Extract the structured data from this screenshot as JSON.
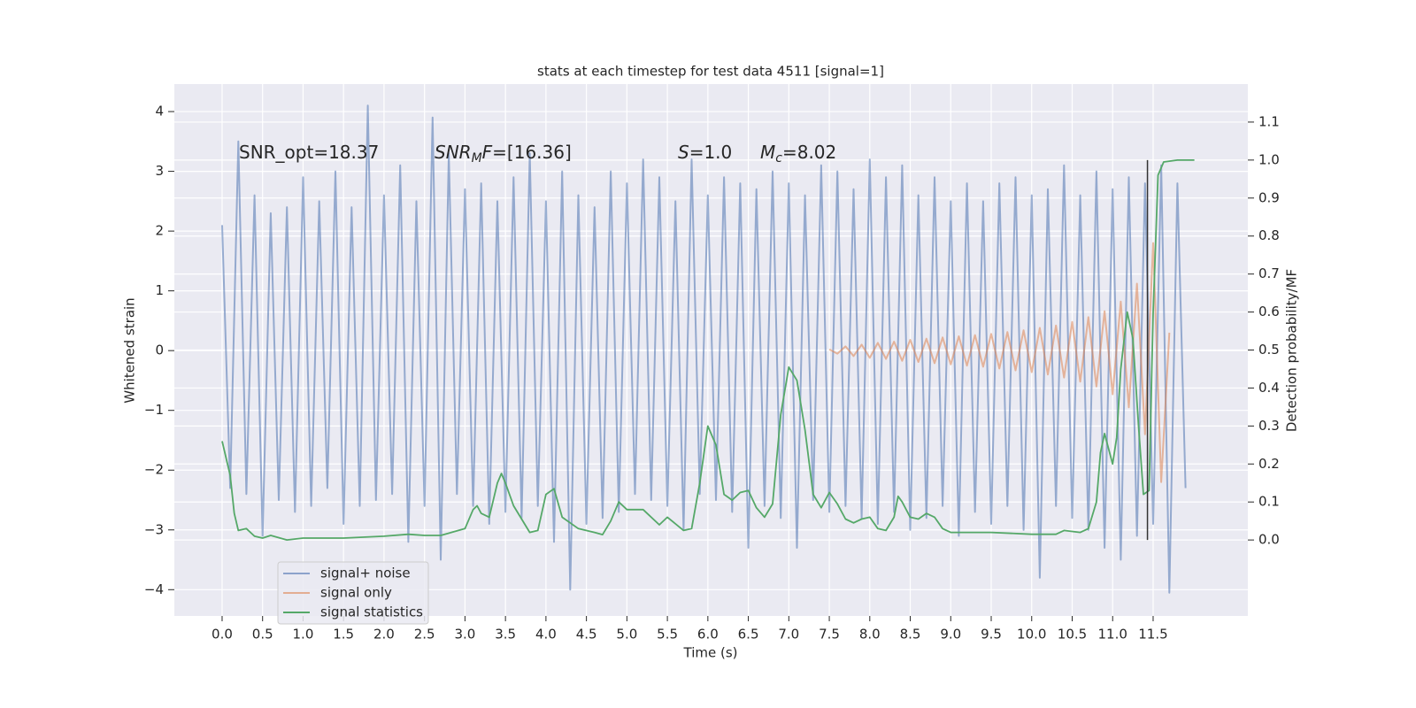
{
  "chart_data": {
    "type": "line",
    "title": "stats at each timestep for test data 4511 [signal=1]",
    "xlabel": "Time (s)",
    "ylabel": "Whitened strain",
    "y2label": "Detection probability/MF",
    "xlim": [
      -0.59,
      12.67
    ],
    "ylim": [
      -4.44,
      4.46
    ],
    "y2lim": [
      -0.2,
      1.2
    ],
    "grid": true,
    "background": "#eaeaf2",
    "legend": "lower left",
    "xticks": [
      {
        "value": 0,
        "label": "0.0"
      },
      {
        "value": 0.5,
        "label": "0.5"
      },
      {
        "value": 1,
        "label": "1.0"
      },
      {
        "value": 1.5,
        "label": "1.5"
      },
      {
        "value": 2,
        "label": "2.0"
      },
      {
        "value": 2.5,
        "label": "2.5"
      },
      {
        "value": 3,
        "label": "3.0"
      },
      {
        "value": 3.5,
        "label": "3.5"
      },
      {
        "value": 4,
        "label": "4.0"
      },
      {
        "value": 4.5,
        "label": "4.5"
      },
      {
        "value": 5,
        "label": "5.0"
      },
      {
        "value": 5.5,
        "label": "5.5"
      },
      {
        "value": 6,
        "label": "6.0"
      },
      {
        "value": 6.5,
        "label": "6.5"
      },
      {
        "value": 7,
        "label": "7.0"
      },
      {
        "value": 7.5,
        "label": "7.5"
      },
      {
        "value": 8,
        "label": "8.0"
      },
      {
        "value": 8.5,
        "label": "8.5"
      },
      {
        "value": 9,
        "label": "9.0"
      },
      {
        "value": 9.5,
        "label": "9.5"
      },
      {
        "value": 10,
        "label": "10.0"
      },
      {
        "value": 10.5,
        "label": "10.5"
      },
      {
        "value": 11,
        "label": "11.0"
      },
      {
        "value": 11.5,
        "label": "11.5"
      }
    ],
    "yticks": [
      {
        "value": -4,
        "label": "−4"
      },
      {
        "value": -3,
        "label": "−3"
      },
      {
        "value": -2,
        "label": "−2"
      },
      {
        "value": -1,
        "label": "−1"
      },
      0,
      1,
      2,
      3,
      4
    ],
    "y2ticks": [
      {
        "value": 0,
        "label": "0.0"
      },
      {
        "value": 0.1,
        "label": "0.1"
      },
      {
        "value": 0.2,
        "label": "0.2"
      },
      {
        "value": 0.3,
        "label": "0.3"
      },
      {
        "value": 0.4,
        "label": "0.4"
      },
      {
        "value": 0.5,
        "label": "0.5"
      },
      {
        "value": 0.6,
        "label": "0.6"
      },
      {
        "value": 0.7,
        "label": "0.7"
      },
      {
        "value": 0.8,
        "label": "0.8"
      },
      {
        "value": 0.9,
        "label": "0.9"
      },
      {
        "value": 1,
        "label": "1.0"
      },
      {
        "value": 1.1,
        "label": "1.1"
      }
    ],
    "series": [
      {
        "name": "signal+ noise",
        "color": "#4c72b0",
        "x": [
          0,
          0.1,
          0.2,
          0.3,
          0.4,
          0.5,
          0.6,
          0.7,
          0.8,
          0.9,
          1,
          1.1,
          1.2,
          1.3,
          1.4,
          1.5,
          1.6,
          1.7,
          1.8,
          1.9,
          2,
          2.1,
          2.2,
          2.3,
          2.4,
          2.5,
          2.6,
          2.7,
          2.8,
          2.9,
          3,
          3.1,
          3.2,
          3.3,
          3.4,
          3.5,
          3.6,
          3.7,
          3.8,
          3.9,
          4,
          4.1,
          4.2,
          4.3,
          4.4,
          4.5,
          4.6,
          4.7,
          4.8,
          4.9,
          5,
          5.1,
          5.2,
          5.3,
          5.4,
          5.5,
          5.6,
          5.7,
          5.8,
          5.9,
          6,
          6.1,
          6.2,
          6.3,
          6.4,
          6.5,
          6.6,
          6.7,
          6.8,
          6.9,
          7,
          7.1,
          7.2,
          7.3,
          7.4,
          7.5,
          7.6,
          7.7,
          7.8,
          7.9,
          8,
          8.1,
          8.2,
          8.3,
          8.4,
          8.5,
          8.6,
          8.7,
          8.8,
          8.9,
          9,
          9.1,
          9.2,
          9.3,
          9.4,
          9.5,
          9.6,
          9.7,
          9.8,
          9.9,
          10,
          10.1,
          10.2,
          10.3,
          10.4,
          10.5,
          10.6,
          10.7,
          10.8,
          10.9,
          11,
          11.1,
          11.2,
          11.3,
          11.4,
          11.5,
          11.6,
          11.7,
          11.8,
          11.9
        ],
        "values": [
          2.1,
          -2.3,
          3.5,
          -2.4,
          2.6,
          -3.1,
          2.3,
          -2.5,
          2.4,
          -2.7,
          2.9,
          -2.6,
          2.5,
          -2.3,
          3.0,
          -2.9,
          2.4,
          -2.6,
          4.1,
          -2.5,
          2.6,
          -2.4,
          3.1,
          -3.2,
          2.5,
          -2.6,
          3.9,
          -3.5,
          3.3,
          -2.4,
          2.7,
          -2.6,
          2.8,
          -2.9,
          2.5,
          -2.7,
          2.9,
          -2.8,
          3.3,
          -2.6,
          2.5,
          -3.2,
          3.0,
          -4.0,
          2.6,
          -2.9,
          2.4,
          -2.8,
          3.0,
          -2.7,
          2.8,
          -2.4,
          3.2,
          -2.5,
          2.9,
          -2.6,
          2.5,
          -3.0,
          3.2,
          -2.4,
          2.6,
          -2.5,
          2.9,
          -2.7,
          2.8,
          -3.3,
          2.7,
          -2.6,
          3.0,
          -2.8,
          2.8,
          -3.3,
          2.6,
          -2.5,
          3.1,
          -2.7,
          3.0,
          -2.6,
          2.7,
          -2.8,
          3.2,
          -2.9,
          2.9,
          -2.7,
          3.1,
          -3.0,
          2.6,
          -2.8,
          2.9,
          -2.6,
          2.5,
          -3.1,
          2.8,
          -2.7,
          2.5,
          -2.9,
          2.8,
          -2.6,
          2.9,
          -3.0,
          2.6,
          -3.8,
          2.7,
          -2.6,
          3.1,
          -2.8,
          2.6,
          -3.0,
          3.0,
          -3.3,
          2.7,
          -3.5,
          2.9,
          -3.1,
          2.8,
          -2.9,
          3.1,
          -4.05,
          2.8,
          -2.3
        ]
      },
      {
        "name": "signal only",
        "color": "#dd8452",
        "x": [
          7.5,
          7.6,
          7.7,
          7.8,
          7.9,
          8,
          8.1,
          8.2,
          8.3,
          8.4,
          8.5,
          8.6,
          8.7,
          8.8,
          8.9,
          9,
          9.1,
          9.2,
          9.3,
          9.4,
          9.5,
          9.6,
          9.7,
          9.8,
          9.9,
          10,
          10.1,
          10.2,
          10.3,
          10.4,
          10.5,
          10.6,
          10.7,
          10.8,
          10.9,
          11,
          11.1,
          11.2,
          11.3,
          11.4,
          11.5,
          11.6,
          11.7
        ],
        "values": [
          0.02,
          -0.05,
          0.07,
          -0.09,
          0.1,
          -0.12,
          0.13,
          -0.14,
          0.15,
          -0.17,
          0.18,
          -0.19,
          0.2,
          -0.21,
          0.22,
          -0.23,
          0.24,
          -0.25,
          0.26,
          -0.27,
          0.28,
          -0.3,
          0.31,
          -0.33,
          0.34,
          -0.36,
          0.38,
          -0.4,
          0.42,
          -0.45,
          0.48,
          -0.52,
          0.56,
          -0.6,
          0.66,
          -0.73,
          0.82,
          -0.95,
          1.12,
          -1.4,
          1.8,
          -2.2,
          0.3
        ]
      },
      {
        "name": "signal statistics",
        "color": "#55a868",
        "axis": "y2",
        "x": [
          0,
          0.1,
          0.15,
          0.2,
          0.3,
          0.4,
          0.5,
          0.6,
          0.8,
          1,
          1.5,
          2,
          2.3,
          2.5,
          2.7,
          3,
          3.1,
          3.15,
          3.2,
          3.3,
          3.4,
          3.45,
          3.5,
          3.6,
          3.8,
          3.9,
          4,
          4.1,
          4.2,
          4.4,
          4.6,
          4.7,
          4.8,
          4.9,
          5,
          5.2,
          5.4,
          5.5,
          5.7,
          5.8,
          5.9,
          6,
          6.1,
          6.2,
          6.3,
          6.4,
          6.5,
          6.6,
          6.7,
          6.8,
          6.9,
          7,
          7.1,
          7.2,
          7.3,
          7.4,
          7.5,
          7.6,
          7.7,
          7.8,
          7.9,
          8,
          8.1,
          8.2,
          8.3,
          8.35,
          8.4,
          8.5,
          8.6,
          8.7,
          8.8,
          8.9,
          9,
          9.5,
          10,
          10.3,
          10.4,
          10.6,
          10.7,
          10.8,
          10.85,
          10.9,
          11,
          11.05,
          11.1,
          11.18,
          11.25,
          11.32,
          11.38,
          11.45,
          11.5,
          11.56,
          11.63,
          11.8,
          12.01
        ],
        "values": [
          0.26,
          0.17,
          0.07,
          0.025,
          0.03,
          0.01,
          0.005,
          0.012,
          0.0,
          0.005,
          0.005,
          0.01,
          0.015,
          0.012,
          0.012,
          0.03,
          0.08,
          0.09,
          0.07,
          0.06,
          0.15,
          0.175,
          0.15,
          0.09,
          0.02,
          0.025,
          0.12,
          0.135,
          0.06,
          0.03,
          0.02,
          0.014,
          0.05,
          0.1,
          0.08,
          0.08,
          0.04,
          0.06,
          0.025,
          0.03,
          0.15,
          0.3,
          0.25,
          0.12,
          0.105,
          0.125,
          0.13,
          0.085,
          0.06,
          0.095,
          0.33,
          0.455,
          0.42,
          0.29,
          0.12,
          0.085,
          0.125,
          0.095,
          0.055,
          0.045,
          0.055,
          0.06,
          0.03,
          0.025,
          0.06,
          0.115,
          0.1,
          0.06,
          0.055,
          0.07,
          0.06,
          0.03,
          0.02,
          0.02,
          0.015,
          0.015,
          0.025,
          0.02,
          0.03,
          0.1,
          0.23,
          0.28,
          0.2,
          0.27,
          0.45,
          0.6,
          0.53,
          0.3,
          0.12,
          0.13,
          0.6,
          0.96,
          0.995,
          1.0,
          1.0
        ]
      }
    ],
    "vline": {
      "x": 11.43,
      "y2": [
        0,
        1
      ],
      "color": "#333333"
    },
    "annotations": [
      {
        "parts": [
          {
            "text": "SNR_opt=18.37",
            "style": "normal"
          }
        ]
      },
      {
        "parts": [
          {
            "text": "SNR",
            "style": "italic"
          },
          {
            "text": "M",
            "style": "sub"
          },
          {
            "text": "F",
            "style": "italic"
          },
          {
            "text": "=[16.36]",
            "style": "normal"
          }
        ]
      },
      {
        "parts": [
          {
            "text": "S",
            "style": "italic"
          },
          {
            "text": "=1.0",
            "style": "normal"
          }
        ]
      },
      {
        "parts": [
          {
            "text": "M",
            "style": "italic"
          },
          {
            "text": "c",
            "style": "sub"
          },
          {
            "text": "=8.02",
            "style": "normal"
          }
        ]
      }
    ]
  }
}
